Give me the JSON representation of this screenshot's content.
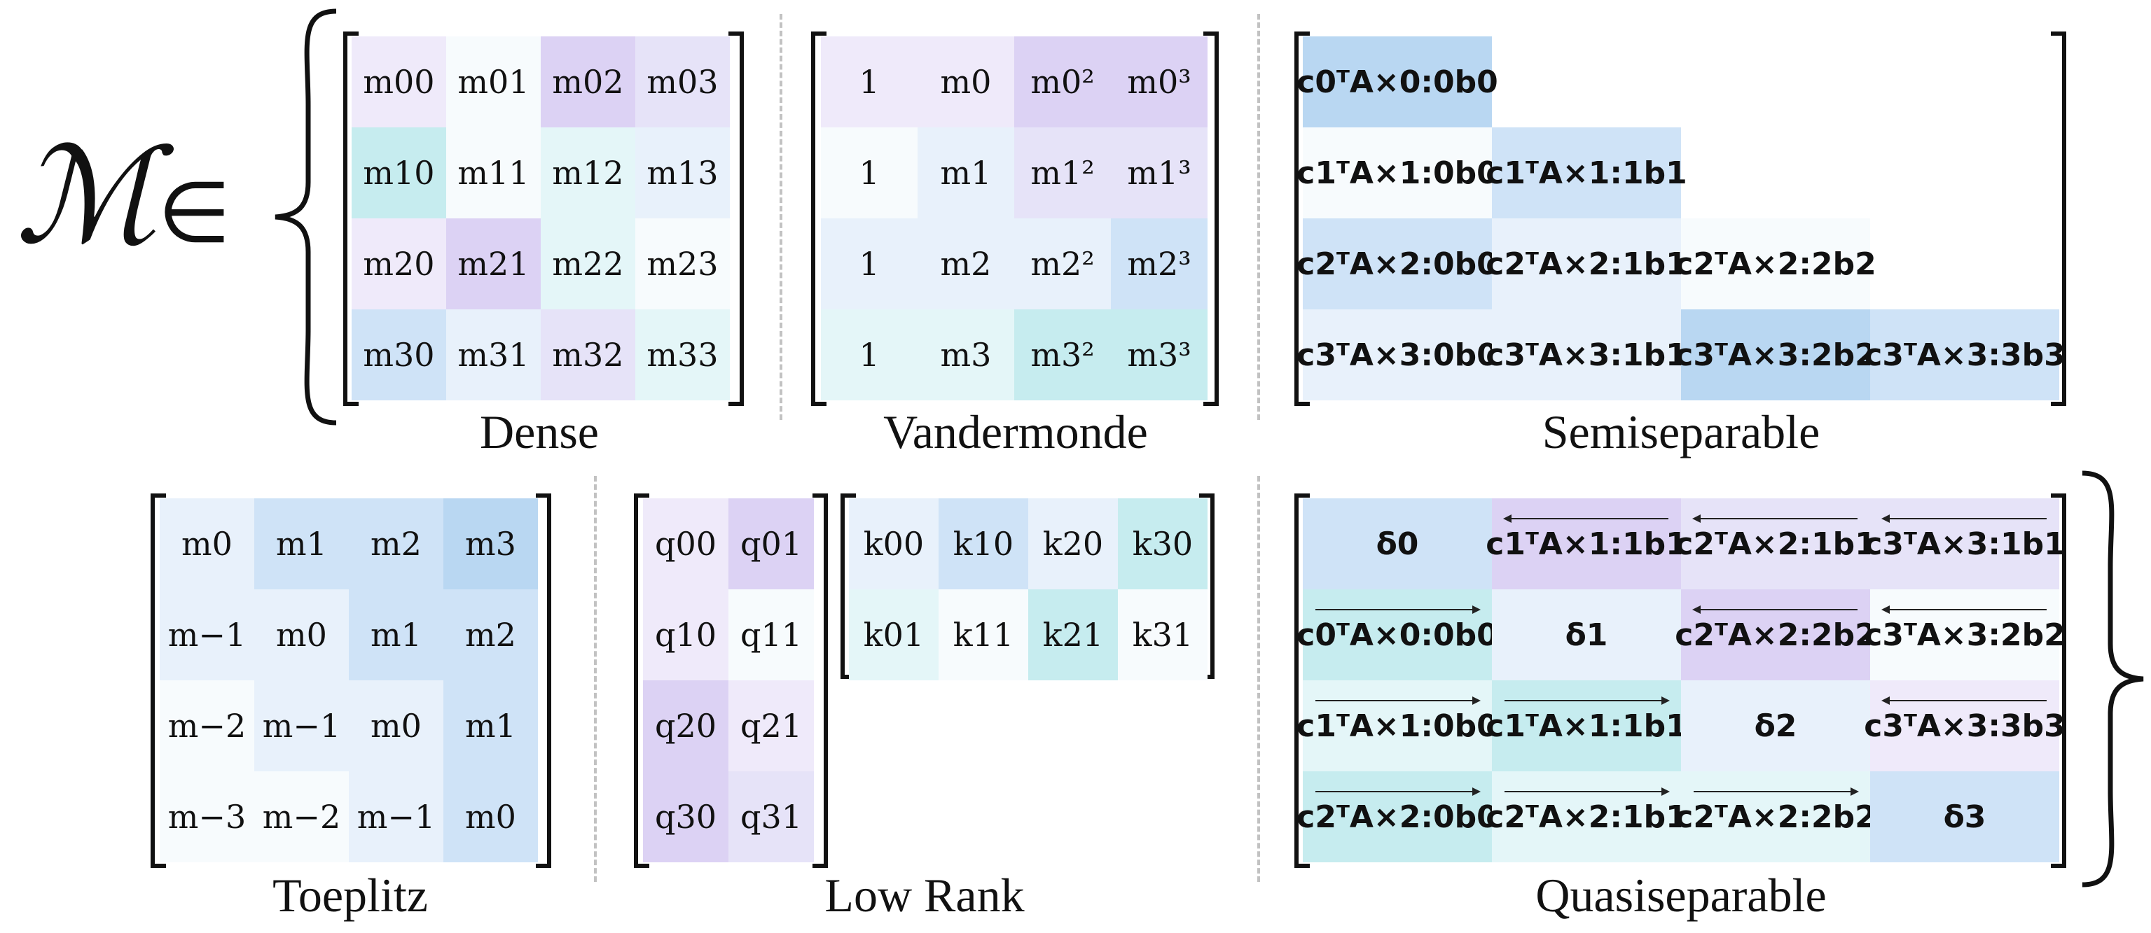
{
  "symbol": "ℳ",
  "member_of": "∈",
  "colors": {
    "blue_light": "#e8f1fb",
    "blue": "#cfe3f7",
    "blue_mid": "#b9d7f2",
    "cyan_light": "#e4f6f8",
    "cyan": "#c6ecef",
    "purple_light": "#efeafa",
    "purple": "#dcd2f4",
    "lavender": "#e6e3f8",
    "near_white": "#f7fbfd"
  },
  "panels": {
    "dense": {
      "caption": "Dense",
      "cells": [
        [
          "m00",
          "m01",
          "m02",
          "m03"
        ],
        [
          "m10",
          "m11",
          "m12",
          "m13"
        ],
        [
          "m20",
          "m21",
          "m22",
          "m23"
        ],
        [
          "m30",
          "m31",
          "m32",
          "m33"
        ]
      ]
    },
    "vandermonde": {
      "caption": "Vandermonde",
      "cells": [
        [
          "1",
          "m0",
          "m0²",
          "m0³"
        ],
        [
          "1",
          "m1",
          "m1²",
          "m1³"
        ],
        [
          "1",
          "m2",
          "m2²",
          "m2³"
        ],
        [
          "1",
          "m3",
          "m3²",
          "m3³"
        ]
      ]
    },
    "semiseparable": {
      "caption": "Semiseparable",
      "cells": [
        [
          "c0ᵀA×0:0b0",
          "",
          "",
          ""
        ],
        [
          "c1ᵀA×1:0b0",
          "c1ᵀA×1:1b1",
          "",
          ""
        ],
        [
          "c2ᵀA×2:0b0",
          "c2ᵀA×2:1b1",
          "c2ᵀA×2:2b2",
          ""
        ],
        [
          "c3ᵀA×3:0b0",
          "c3ᵀA×3:1b1",
          "c3ᵀA×3:2b2",
          "c3ᵀA×3:3b3"
        ]
      ]
    },
    "toeplitz": {
      "caption": "Toeplitz",
      "cells": [
        [
          "m0",
          "m1",
          "m2",
          "m3"
        ],
        [
          "m−1",
          "m0",
          "m1",
          "m2"
        ],
        [
          "m−2",
          "m−1",
          "m0",
          "m1"
        ],
        [
          "m−3",
          "m−2",
          "m−1",
          "m0"
        ]
      ]
    },
    "low_rank": {
      "caption": "Low Rank",
      "q_cells": [
        [
          "q00",
          "q01"
        ],
        [
          "q10",
          "q11"
        ],
        [
          "q20",
          "q21"
        ],
        [
          "q30",
          "q31"
        ]
      ],
      "k_cells": [
        [
          "k00",
          "k10",
          "k20",
          "k30"
        ],
        [
          "k01",
          "k11",
          "k21",
          "k31"
        ]
      ]
    },
    "quasiseparable": {
      "caption": "Quasiseparable",
      "cells": [
        [
          "δ0",
          "c1ᵀA×1:1b1",
          "c2ᵀA×2:1b1",
          "c3ᵀA×3:1b1"
        ],
        [
          "c0ᵀA×0:0b0",
          "δ1",
          "c2ᵀA×2:2b2",
          "c3ᵀA×3:2b2"
        ],
        [
          "c1ᵀA×1:0b0",
          "c1ᵀA×1:1b1",
          "δ2",
          "c3ᵀA×3:3b3"
        ],
        [
          "c2ᵀA×2:0b0",
          "c2ᵀA×2:1b1",
          "c2ᵀA×2:2b2",
          "δ3"
        ]
      ]
    }
  }
}
